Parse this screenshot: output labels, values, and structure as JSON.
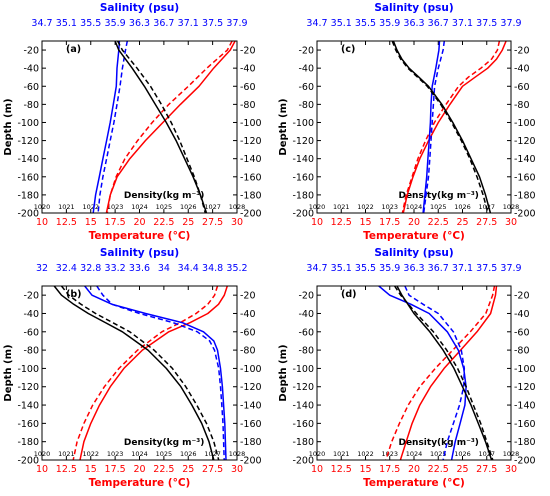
{
  "chart_data": [
    {
      "type": "line",
      "panel_label": "(a)",
      "sal_title": "Salinity (psu)",
      "temp_title": "Temperature (°C)",
      "ylabel": "Depth (m)",
      "density_label": "Density(kg m⁻³)",
      "ylim": [
        -200,
        -10
      ],
      "depth_ticks": [
        "-20",
        "-40",
        "-60",
        "-80",
        "-100",
        "-120",
        "-140",
        "-160",
        "-180",
        "-200"
      ],
      "temp_range": [
        10,
        30
      ],
      "temp_ticks": [
        "10",
        "12.5",
        "15",
        "17.5",
        "20",
        "22.5",
        "25",
        "27.5",
        "30"
      ],
      "sal_range": [
        34.7,
        37.9
      ],
      "sal_ticks": [
        "34.7",
        "35.1",
        "35.5",
        "35.9",
        "36.3",
        "36.7",
        "37.1",
        "37.5",
        "37.9"
      ],
      "dens_range": [
        1020,
        1028
      ],
      "dens_ticks": [
        "1020",
        "1021",
        "1022",
        "1023",
        "1024",
        "1025",
        "1026",
        "1027",
        "1028"
      ],
      "series": [
        {
          "var": "temperature",
          "style": "solid",
          "color": "#ff0000",
          "depth": [
            -10,
            -20,
            -40,
            -60,
            -80,
            -100,
            -120,
            -140,
            -160,
            -180,
            -200
          ],
          "values": [
            29.8,
            29.3,
            27.6,
            26.1,
            24.2,
            22.4,
            20.6,
            19.0,
            17.7,
            17.0,
            16.6
          ]
        },
        {
          "var": "temperature",
          "style": "dashed",
          "color": "#ff0000",
          "depth": [
            -10,
            -20,
            -40,
            -60,
            -80,
            -100,
            -120,
            -140,
            -160,
            -180,
            -200
          ],
          "values": [
            29.5,
            29.0,
            26.9,
            25.0,
            23.0,
            21.3,
            19.8,
            18.5,
            17.6,
            17.0,
            16.7
          ]
        },
        {
          "var": "salinity",
          "style": "solid",
          "color": "#0000ff",
          "depth": [
            -10,
            -20,
            -40,
            -60,
            -80,
            -100,
            -120,
            -140,
            -160,
            -180,
            -200
          ],
          "values": [
            35.97,
            35.96,
            35.93,
            35.92,
            35.87,
            35.82,
            35.76,
            35.7,
            35.64,
            35.58,
            35.54
          ]
        },
        {
          "var": "salinity",
          "style": "dashed",
          "color": "#0000ff",
          "depth": [
            -10,
            -20,
            -40,
            -60,
            -80,
            -100,
            -120,
            -140,
            -160,
            -180,
            -200
          ],
          "values": [
            36.1,
            36.07,
            36.02,
            35.98,
            35.93,
            35.88,
            35.82,
            35.76,
            35.7,
            35.65,
            35.62
          ]
        },
        {
          "var": "density",
          "style": "solid",
          "color": "#000000",
          "depth": [
            -10,
            -20,
            -40,
            -60,
            -80,
            -100,
            -120,
            -140,
            -160,
            -180,
            -200
          ],
          "values": [
            1023.0,
            1023.15,
            1023.7,
            1024.2,
            1024.65,
            1025.1,
            1025.5,
            1025.85,
            1026.2,
            1026.5,
            1026.75
          ]
        },
        {
          "var": "density",
          "style": "dashed",
          "color": "#000000",
          "depth": [
            -10,
            -20,
            -40,
            -60,
            -80,
            -100,
            -120,
            -140,
            -160,
            -180,
            -200
          ],
          "values": [
            1023.1,
            1023.3,
            1023.9,
            1024.45,
            1024.9,
            1025.3,
            1025.65,
            1025.95,
            1026.25,
            1026.5,
            1026.7
          ]
        }
      ]
    },
    {
      "type": "line",
      "panel_label": "(c)",
      "sal_title": "Salinity (psu)",
      "temp_title": "Temperature (°C)",
      "ylabel": "Depth (m)",
      "density_label": "Density(kg m⁻³)",
      "ylim": [
        -200,
        -10
      ],
      "depth_ticks": [
        "-20",
        "-40",
        "-60",
        "-80",
        "-100",
        "-120",
        "-140",
        "-160",
        "-180",
        "-200"
      ],
      "temp_range": [
        10,
        30
      ],
      "temp_ticks": [
        "10",
        "12.5",
        "15",
        "17.5",
        "20",
        "22.5",
        "25",
        "27.5",
        "30"
      ],
      "sal_range": [
        34.7,
        37.9
      ],
      "sal_ticks": [
        "34.7",
        "35.1",
        "35.5",
        "35.9",
        "36.3",
        "36.7",
        "37.1",
        "37.5",
        "37.9"
      ],
      "dens_range": [
        1020,
        1028
      ],
      "dens_ticks": [
        "1020",
        "1021",
        "1022",
        "1023",
        "1024",
        "1025",
        "1026",
        "1027",
        "1028"
      ],
      "series": [
        {
          "var": "temperature",
          "style": "solid",
          "color": "#ff0000",
          "depth": [
            -10,
            -20,
            -30,
            -40,
            -50,
            -60,
            -80,
            -100,
            -120,
            -140,
            -160,
            -180,
            -200
          ],
          "values": [
            29.5,
            29.1,
            28.5,
            27.6,
            26.3,
            25.0,
            23.7,
            22.5,
            21.5,
            20.6,
            19.9,
            19.3,
            18.9
          ]
        },
        {
          "var": "temperature",
          "style": "dashed",
          "color": "#ff0000",
          "depth": [
            -10,
            -20,
            -30,
            -40,
            -50,
            -60,
            -80,
            -100,
            -120,
            -140,
            -160,
            -180,
            -200
          ],
          "values": [
            28.8,
            28.6,
            28.0,
            26.9,
            25.6,
            24.6,
            23.3,
            22.1,
            21.2,
            20.4,
            19.8,
            19.2,
            18.8
          ]
        },
        {
          "var": "salinity",
          "style": "solid",
          "color": "#0000ff",
          "depth": [
            -10,
            -20,
            -40,
            -60,
            -80,
            -100,
            -120,
            -140,
            -160,
            -180,
            -200
          ],
          "values": [
            36.72,
            36.71,
            36.66,
            36.6,
            36.58,
            36.57,
            36.55,
            36.53,
            36.51,
            36.48,
            36.45
          ]
        },
        {
          "var": "salinity",
          "style": "dashed",
          "color": "#0000ff",
          "depth": [
            -10,
            -20,
            -40,
            -60,
            -80,
            -100,
            -120,
            -140,
            -160,
            -180,
            -200
          ],
          "values": [
            36.8,
            36.78,
            36.7,
            36.64,
            36.62,
            36.6,
            36.58,
            36.56,
            36.54,
            36.5,
            36.46
          ]
        },
        {
          "var": "density",
          "style": "solid",
          "color": "#000000",
          "depth": [
            -10,
            -20,
            -30,
            -40,
            -50,
            -60,
            -80,
            -100,
            -120,
            -140,
            -160,
            -180,
            -200
          ],
          "values": [
            1023.15,
            1023.3,
            1023.5,
            1023.8,
            1024.2,
            1024.6,
            1025.15,
            1025.6,
            1026.0,
            1026.35,
            1026.7,
            1026.95,
            1027.15
          ]
        },
        {
          "var": "density",
          "style": "dashed",
          "color": "#000000",
          "depth": [
            -10,
            -20,
            -30,
            -40,
            -50,
            -60,
            -80,
            -100,
            -120,
            -140,
            -160,
            -180,
            -200
          ],
          "values": [
            1023.1,
            1023.25,
            1023.45,
            1023.75,
            1024.15,
            1024.55,
            1025.1,
            1025.55,
            1025.95,
            1026.3,
            1026.6,
            1026.85,
            1027.05
          ]
        }
      ]
    },
    {
      "type": "line",
      "panel_label": "(b)",
      "sal_title": "Salinity (psu)",
      "temp_title": "Temperature (°C)",
      "ylabel": "Depth (m)",
      "density_label": "Density(kg m⁻³)",
      "ylim": [
        -200,
        -10
      ],
      "depth_ticks": [
        "-20",
        "-40",
        "-60",
        "-80",
        "-100",
        "-120",
        "-140",
        "-160",
        "-180",
        "-200"
      ],
      "temp_range": [
        10,
        30
      ],
      "temp_ticks": [
        "10",
        "12.5",
        "15",
        "17.5",
        "20",
        "22.5",
        "25",
        "27.5",
        "30"
      ],
      "sal_range": [
        32,
        35.2
      ],
      "sal_ticks": [
        "32",
        "32.4",
        "32.8",
        "33.2",
        "33.6",
        "34",
        "34.4",
        "34.8",
        "35.2"
      ],
      "dens_range": [
        1020,
        1028
      ],
      "dens_ticks": [
        "1020",
        "1021",
        "1022",
        "1023",
        "1024",
        "1025",
        "1026",
        "1027",
        "1028"
      ],
      "series": [
        {
          "var": "temperature",
          "style": "solid",
          "color": "#ff0000",
          "depth": [
            -10,
            -20,
            -30,
            -40,
            -50,
            -60,
            -80,
            -100,
            -120,
            -140,
            -160,
            -180,
            -200
          ],
          "values": [
            29.0,
            28.7,
            28.1,
            27.0,
            25.2,
            23.0,
            20.3,
            18.4,
            17.0,
            15.9,
            15.0,
            14.3,
            13.9
          ]
        },
        {
          "var": "temperature",
          "style": "dashed",
          "color": "#ff0000",
          "depth": [
            -10,
            -20,
            -30,
            -40,
            -50,
            -60,
            -80,
            -100,
            -120,
            -140,
            -160,
            -180,
            -200
          ],
          "values": [
            28.0,
            27.7,
            27.0,
            25.8,
            24.2,
            22.3,
            19.8,
            17.9,
            16.4,
            15.2,
            14.3,
            13.6,
            13.2
          ]
        },
        {
          "var": "salinity",
          "style": "solid",
          "color": "#0000ff",
          "depth": [
            -10,
            -20,
            -30,
            -40,
            -50,
            -60,
            -70,
            -80,
            -100,
            -120,
            -140,
            -160,
            -180,
            -200
          ],
          "values": [
            32.7,
            32.82,
            33.15,
            33.7,
            34.3,
            34.65,
            34.82,
            34.88,
            34.93,
            34.96,
            34.98,
            35.0,
            35.01,
            35.02
          ]
        },
        {
          "var": "salinity",
          "style": "dashed",
          "color": "#0000ff",
          "depth": [
            -10,
            -20,
            -30,
            -40,
            -50,
            -60,
            -70,
            -80,
            -100,
            -120,
            -140,
            -160,
            -180,
            -200
          ],
          "values": [
            32.9,
            33.0,
            33.15,
            33.6,
            34.15,
            34.55,
            34.75,
            34.83,
            34.9,
            34.93,
            34.95,
            34.97,
            34.98,
            34.99
          ]
        },
        {
          "var": "density",
          "style": "solid",
          "color": "#000000",
          "depth": [
            -10,
            -20,
            -30,
            -40,
            -50,
            -60,
            -80,
            -100,
            -120,
            -140,
            -160,
            -180,
            -200
          ],
          "values": [
            1020.5,
            1020.8,
            1021.3,
            1021.9,
            1022.6,
            1023.3,
            1024.35,
            1025.1,
            1025.7,
            1026.15,
            1026.55,
            1026.85,
            1027.05
          ]
        },
        {
          "var": "density",
          "style": "dashed",
          "color": "#000000",
          "depth": [
            -10,
            -20,
            -30,
            -40,
            -50,
            -60,
            -80,
            -100,
            -120,
            -140,
            -160,
            -180,
            -200
          ],
          "values": [
            1020.8,
            1021.1,
            1021.6,
            1022.2,
            1022.9,
            1023.6,
            1024.6,
            1025.35,
            1025.9,
            1026.35,
            1026.75,
            1027.05,
            1027.25
          ]
        }
      ]
    },
    {
      "type": "line",
      "panel_label": "(d)",
      "sal_title": "Salinity (psu)",
      "temp_title": "Temperature (°C)",
      "ylabel": "Depth (m)",
      "density_label": "Density(kg m⁻³)",
      "ylim": [
        -200,
        -10
      ],
      "depth_ticks": [
        "-20",
        "-40",
        "-60",
        "-80",
        "-100",
        "-120",
        "-140",
        "-160",
        "-180",
        "-200"
      ],
      "temp_range": [
        10,
        30
      ],
      "temp_ticks": [
        "10",
        "12.5",
        "15",
        "17.5",
        "20",
        "22.5",
        "25",
        "27.5",
        "30"
      ],
      "sal_range": [
        34.7,
        37.9
      ],
      "sal_ticks": [
        "34.7",
        "35.1",
        "35.5",
        "35.9",
        "36.3",
        "36.7",
        "37.1",
        "37.5",
        "37.9"
      ],
      "dens_range": [
        1020,
        1028
      ],
      "dens_ticks": [
        "1020",
        "1021",
        "1022",
        "1023",
        "1024",
        "1025",
        "1026",
        "1027",
        "1028"
      ],
      "series": [
        {
          "var": "temperature",
          "style": "solid",
          "color": "#ff0000",
          "depth": [
            -10,
            -20,
            -40,
            -60,
            -80,
            -100,
            -120,
            -140,
            -160,
            -180,
            -200
          ],
          "values": [
            28.5,
            28.4,
            27.9,
            26.5,
            24.8,
            23.1,
            21.7,
            20.6,
            19.8,
            19.2,
            18.6
          ]
        },
        {
          "var": "temperature",
          "style": "dashed",
          "color": "#ff0000",
          "depth": [
            -10,
            -20,
            -40,
            -60,
            -80,
            -100,
            -120,
            -140,
            -160,
            -180,
            -200
          ],
          "values": [
            28.3,
            28.1,
            27.4,
            25.8,
            24.0,
            22.2,
            20.6,
            19.4,
            18.5,
            17.7,
            17.1
          ]
        },
        {
          "var": "salinity",
          "style": "solid",
          "color": "#0000ff",
          "depth": [
            -10,
            -20,
            -30,
            -40,
            -60,
            -80,
            -100,
            -120,
            -140,
            -160,
            -180,
            -200
          ],
          "values": [
            35.72,
            35.9,
            36.25,
            36.55,
            36.85,
            37.03,
            37.12,
            37.16,
            37.14,
            37.06,
            36.98,
            36.92
          ]
        },
        {
          "var": "salinity",
          "style": "dashed",
          "color": "#0000ff",
          "depth": [
            -10,
            -20,
            -30,
            -40,
            -60,
            -80,
            -100,
            -120,
            -140,
            -160,
            -180,
            -200
          ],
          "values": [
            36.15,
            36.22,
            36.45,
            36.7,
            36.95,
            37.08,
            37.13,
            37.12,
            37.05,
            36.95,
            36.85,
            36.78
          ]
        },
        {
          "var": "density",
          "style": "solid",
          "color": "#000000",
          "depth": [
            -10,
            -20,
            -40,
            -60,
            -80,
            -100,
            -120,
            -140,
            -160,
            -180,
            -200
          ],
          "values": [
            1023.3,
            1023.5,
            1024.0,
            1024.65,
            1025.2,
            1025.65,
            1026.0,
            1026.35,
            1026.65,
            1026.95,
            1027.2
          ]
        },
        {
          "var": "density",
          "style": "dashed",
          "color": "#000000",
          "depth": [
            -10,
            -20,
            -40,
            -60,
            -80,
            -100,
            -120,
            -140,
            -160,
            -180,
            -200
          ],
          "values": [
            1023.2,
            1023.45,
            1024.1,
            1024.8,
            1025.35,
            1025.8,
            1026.15,
            1026.45,
            1026.75,
            1027.0,
            1027.25
          ]
        }
      ]
    }
  ]
}
